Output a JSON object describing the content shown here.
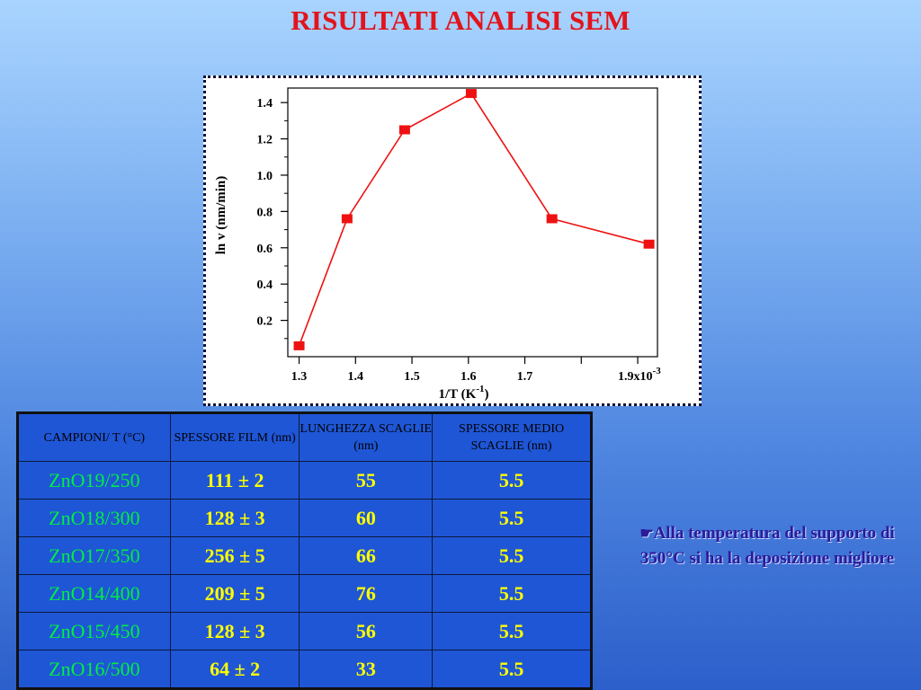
{
  "slide": {
    "title": "RISULTATI ANALISI SEM"
  },
  "chart_data": {
    "type": "line",
    "x": [
      1.3,
      1.385,
      1.487,
      1.605,
      1.748,
      1.92
    ],
    "series": [
      {
        "values": [
          0.06,
          0.76,
          1.25,
          1.45,
          0.76,
          0.62
        ],
        "color": "#ee1111"
      }
    ],
    "xlabel": "1/T (K",
    "xlabel_sup": "-1",
    "xlabel_end": ")",
    "ylabel": "ln v (nm/min)",
    "xticks": [
      1.3,
      1.4,
      1.5,
      1.6,
      1.7,
      1.9
    ],
    "xtick_labels": [
      "1.3",
      "1.4",
      "1.5",
      "1.6",
      "1.7",
      "1.9x10"
    ],
    "xtick_exp": "-3",
    "yticks": [
      0.2,
      0.4,
      0.6,
      0.8,
      1.0,
      1.2,
      1.4
    ],
    "ytick_labels": [
      "0.2",
      "0.4",
      "0.6",
      "0.8",
      "1.0",
      "1.2",
      "1.4"
    ],
    "xlim": [
      1.28,
      1.935
    ],
    "ylim": [
      0.0,
      1.48
    ],
    "grid": false
  },
  "table": {
    "headers": [
      "CAMPIONI/ T (°C)",
      "SPESSORE FILM (nm)",
      "LUNGHEZZA SCAGLIE (nm)",
      "SPESSORE MEDIO SCAGLIE (nm)"
    ],
    "rows": [
      [
        "ZnO19/250",
        "111 ± 2",
        "55",
        "5.5"
      ],
      [
        "ZnO18/300",
        "128 ± 3",
        "60",
        "5.5"
      ],
      [
        "ZnO17/350",
        "256 ± 5",
        "66",
        "5.5"
      ],
      [
        "ZnO14/400",
        "209 ± 5",
        "76",
        "5.5"
      ],
      [
        "ZnO15/450",
        "128 ± 3",
        "56",
        "5.5"
      ],
      [
        "ZnO16/500",
        "64 ± 2",
        "33",
        "5.5"
      ]
    ]
  },
  "note": {
    "icon": "pointing-hand-icon",
    "text": "Alla temperatura del supporto di 350°C si ha la deposizione migliore"
  },
  "colors": {
    "title": "#e2141c",
    "sample_text": "#00ee44",
    "value_text": "#ffff00",
    "table_bg": "#1f56d6",
    "note_text": "#2c1a9a"
  }
}
